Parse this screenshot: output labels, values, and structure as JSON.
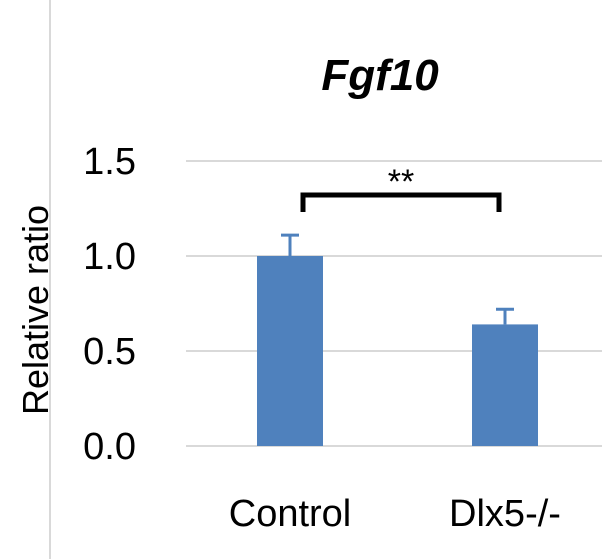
{
  "chart_data": {
    "type": "bar",
    "title": "Fgf10",
    "xlabel": "",
    "ylabel": "Relative ratio",
    "categories": [
      "Control",
      "Dlx5-/-"
    ],
    "values": [
      1.0,
      0.64
    ],
    "error": [
      0.11,
      0.08
    ],
    "ylim": [
      0,
      1.5
    ],
    "yticks": [
      "0.0",
      "0.5",
      "1.0",
      "1.5"
    ],
    "grid": true,
    "bar_color": "#4f81bd",
    "grid_color": "#d9d9d9",
    "significance": {
      "label": "**",
      "between": [
        0,
        1
      ]
    }
  }
}
